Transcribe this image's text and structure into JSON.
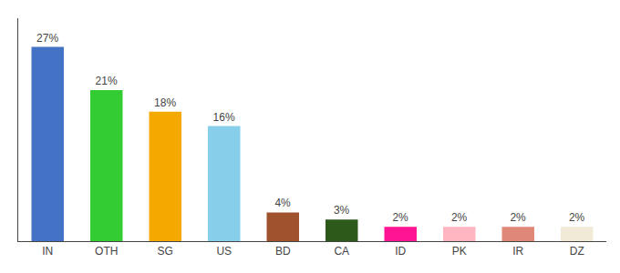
{
  "chart_data": {
    "type": "bar",
    "categories": [
      "IN",
      "OTH",
      "SG",
      "US",
      "BD",
      "CA",
      "ID",
      "PK",
      "IR",
      "DZ"
    ],
    "values": [
      27,
      21,
      18,
      16,
      4,
      3,
      2,
      2,
      2,
      2
    ],
    "value_labels": [
      "27%",
      "21%",
      "18%",
      "16%",
      "4%",
      "3%",
      "2%",
      "2%",
      "2%",
      "2%"
    ],
    "colors": [
      "#4472c4",
      "#33cc33",
      "#f5a800",
      "#87ceeb",
      "#a0522d",
      "#2d5a1b",
      "#ff1493",
      "#ffb6c1",
      "#e08878",
      "#f0ead6"
    ],
    "ylim": [
      0,
      31
    ],
    "data_labels": true,
    "tick_labels": "x",
    "grid": false
  }
}
